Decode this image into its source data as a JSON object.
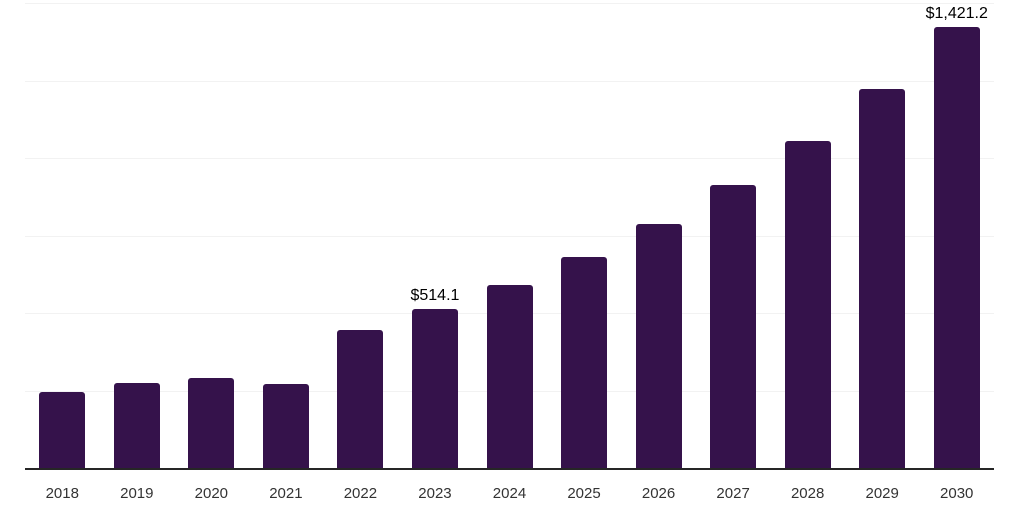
{
  "chart_data": {
    "type": "bar",
    "title": "",
    "xlabel": "",
    "ylabel": "",
    "categories": [
      "2018",
      "2019",
      "2020",
      "2021",
      "2022",
      "2023",
      "2024",
      "2025",
      "2026",
      "2027",
      "2028",
      "2029",
      "2030"
    ],
    "values": [
      245,
      273,
      290,
      272,
      446,
      514.1,
      589,
      682,
      786,
      912,
      1055,
      1224,
      1421.2
    ],
    "labels": [
      "",
      "",
      "",
      "",
      "",
      "$514.1",
      "",
      "",
      "",
      "",
      "",
      "",
      "$1,421.2"
    ],
    "ylim": [
      0,
      1500
    ],
    "gridlines": [
      250,
      500,
      750,
      1000,
      1250,
      1500
    ],
    "grid_on": true,
    "legend_position": "none",
    "currency_prefix": "$",
    "colors": {
      "bar": "#35124B",
      "axis_line": "#262626",
      "gridline": "#F2F2F2",
      "value_label": "#000000",
      "tick_label": "#333333",
      "background": "#FFFFFF"
    }
  }
}
